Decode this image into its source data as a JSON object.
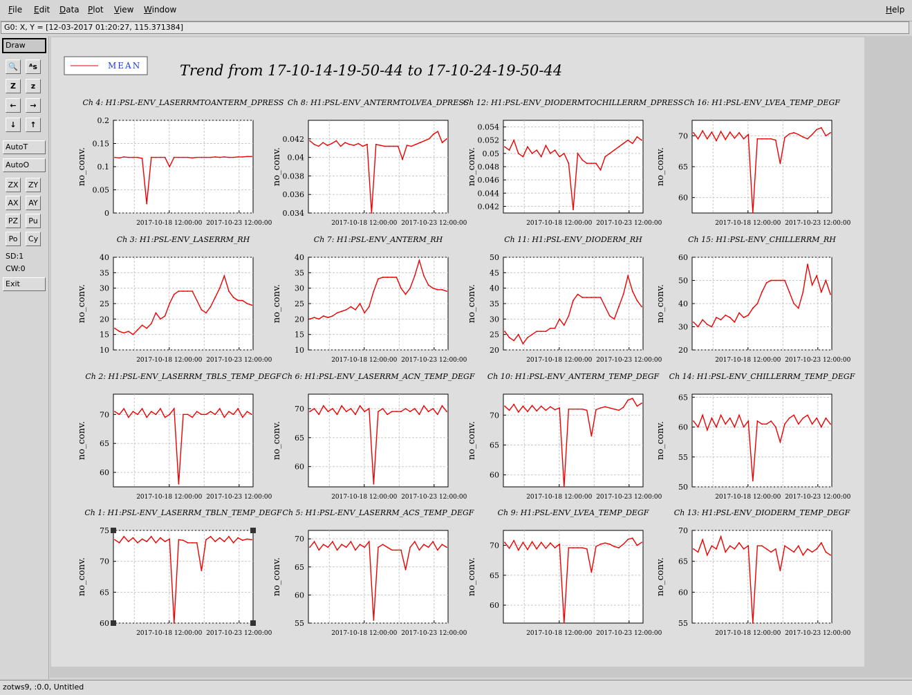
{
  "menubar": {
    "items": [
      {
        "u": "F",
        "rest": "ile"
      },
      {
        "u": "E",
        "rest": "dit"
      },
      {
        "u": "D",
        "rest": "ata"
      },
      {
        "u": "P",
        "rest": "lot"
      },
      {
        "u": "V",
        "rest": "iew"
      },
      {
        "u": "W",
        "rest": "indow"
      }
    ],
    "help": {
      "u": "H",
      "rest": "elp"
    }
  },
  "coord_readout": "G0: X, Y = [12-03-2017 01:20:27, 115.371384]",
  "toolbar": {
    "draw": "Draw",
    "autot": "AutoT",
    "autoo": "AutoO",
    "icons": [
      {
        "name": "zoom-icon",
        "glyph": "🔍"
      },
      {
        "name": "text-size-icon",
        "glyph": "ᴬs"
      },
      {
        "name": "zoom-z-bold-icon",
        "glyph": "Z"
      },
      {
        "name": "zoom-z-icon",
        "glyph": "z"
      },
      {
        "name": "arrow-left-icon",
        "glyph": "←"
      },
      {
        "name": "arrow-right-icon",
        "glyph": "→"
      },
      {
        "name": "arrow-down-icon",
        "glyph": "↓"
      },
      {
        "name": "arrow-up-icon",
        "glyph": "↑"
      }
    ],
    "pairs": [
      [
        "ZX",
        "ZY"
      ],
      [
        "AX",
        "AY"
      ],
      [
        "PZ",
        "Pu"
      ],
      [
        "Po",
        "Cy"
      ]
    ],
    "sd": "SD:1",
    "cw": "CW:0",
    "exit": "Exit"
  },
  "legend": {
    "label": "MEAN",
    "color": "#e00000"
  },
  "title": "Trend from 17-10-14-19-50-44 to 17-10-24-19-50-44",
  "status": "zotws9, :0.0, Untitled",
  "colors": {
    "trace": "#ee0000",
    "grid": "#c8c8c8"
  },
  "chart_data": [
    {
      "type": "line",
      "title": "Ch 4: H1:PSL-ENV_LASERRMTOANTERM_DPRESS",
      "ylabel": "no_conv.",
      "yticks": [
        "0",
        "0.05",
        "0.1",
        "0.15",
        "0.2"
      ],
      "ylim": [
        0,
        0.2
      ],
      "xticks": [
        "2017-10-18 12:00:00",
        "2017-10-23 12:00:00"
      ],
      "series": [
        {
          "values": [
            0.12,
            0.119,
            0.121,
            0.12,
            0.12,
            0.12,
            0.118,
            0.02,
            0.12,
            0.12,
            0.12,
            0.12,
            0.1,
            0.12,
            0.12,
            0.12,
            0.12,
            0.119,
            0.12,
            0.12,
            0.12,
            0.12,
            0.121,
            0.12,
            0.121,
            0.12,
            0.12,
            0.121,
            0.121,
            0.122,
            0.122
          ]
        }
      ]
    },
    {
      "type": "line",
      "title": "Ch 8: H1:PSL-ENV_ANTERMTOLVEA_DPRESS",
      "ylabel": "no_conv.",
      "yticks": [
        "0.034",
        "0.036",
        "0.038",
        "0.04",
        "0.042"
      ],
      "ylim": [
        0.034,
        0.044
      ],
      "xticks": [
        "2017-10-18 12:00:00",
        "2017-10-23 12:00:00"
      ],
      "series": [
        {
          "values": [
            0.0418,
            0.0414,
            0.0412,
            0.0416,
            0.0413,
            0.0415,
            0.0418,
            0.0412,
            0.0416,
            0.0414,
            0.0413,
            0.0415,
            0.0412,
            0.0414,
            0.034,
            0.0414,
            0.0413,
            0.0412,
            0.0412,
            0.0412,
            0.0412,
            0.0398,
            0.0413,
            0.0412,
            0.0414,
            0.0416,
            0.0418,
            0.042,
            0.0425,
            0.0428,
            0.0416,
            0.042
          ]
        }
      ]
    },
    {
      "type": "line",
      "title": "Ch 12: H1:PSL-ENV_DIODERMTOCHILLERRM_DPRESS",
      "ylabel": "no_conv.",
      "yticks": [
        "0.042",
        "0.044",
        "0.046",
        "0.048",
        "0.05",
        "0.052",
        "0.054"
      ],
      "ylim": [
        0.041,
        0.055
      ],
      "xticks": [
        "2017-10-18 12:00:00",
        "2017-10-23 12:00:00"
      ],
      "series": [
        {
          "values": [
            0.051,
            0.0505,
            0.052,
            0.05,
            0.0495,
            0.051,
            0.05,
            0.0505,
            0.0495,
            0.0512,
            0.05,
            0.0505,
            0.0495,
            0.05,
            0.0485,
            0.0415,
            0.05,
            0.049,
            0.0485,
            0.0485,
            0.0485,
            0.0475,
            0.0495,
            0.05,
            0.0505,
            0.051,
            0.0515,
            0.052,
            0.0515,
            0.0525,
            0.052
          ]
        }
      ]
    },
    {
      "type": "line",
      "title": "Ch 16: H1:PSL-ENV_LVEA_TEMP_DEGF",
      "ylabel": "no_conv.",
      "yticks": [
        "60",
        "65",
        "70"
      ],
      "ylim": [
        57.5,
        72.5
      ],
      "xticks": [
        "2017-10-18 12:00:00",
        "2017-10-23 12:00:00"
      ],
      "series": [
        {
          "values": [
            70.5,
            69.5,
            70.8,
            69.5,
            70.6,
            69.2,
            70.7,
            69.4,
            70.6,
            69.6,
            70.5,
            69.5,
            70.2,
            57.5,
            69.5,
            69.5,
            69.5,
            69.5,
            69.3,
            65.5,
            69.7,
            70.3,
            70.5,
            70.2,
            69.8,
            69.5,
            70.2,
            71,
            71.3,
            70,
            70.5
          ]
        }
      ]
    },
    {
      "type": "line",
      "title": "Ch 3: H1:PSL-ENV_LASERRM_RH",
      "ylabel": "no_conv.",
      "yticks": [
        "10",
        "15",
        "20",
        "25",
        "30",
        "35",
        "40"
      ],
      "ylim": [
        10,
        40
      ],
      "xticks": [
        "2017-10-18 12:00:00",
        "2017-10-23 12:00:00"
      ],
      "series": [
        {
          "values": [
            17,
            16,
            15.5,
            16,
            15,
            16.5,
            18,
            17,
            18.5,
            22,
            20,
            21,
            25,
            28,
            29,
            29,
            29,
            29,
            26,
            23,
            22,
            24,
            27,
            30,
            34,
            29,
            27,
            26,
            26,
            25,
            24.5
          ]
        }
      ]
    },
    {
      "type": "line",
      "title": "Ch 7: H1:PSL-ENV_ANTERM_RH",
      "ylabel": "no_conv.",
      "yticks": [
        "10",
        "15",
        "20",
        "25",
        "30",
        "35",
        "40"
      ],
      "ylim": [
        10,
        40
      ],
      "xticks": [
        "2017-10-18 12:00:00",
        "2017-10-23 12:00:00"
      ],
      "series": [
        {
          "values": [
            20,
            20.5,
            20,
            21,
            20.5,
            21,
            22,
            22.5,
            23,
            24,
            23,
            25,
            22,
            24,
            29,
            33,
            33.5,
            33.5,
            33.5,
            33.5,
            30,
            28,
            30,
            34,
            39,
            34,
            31,
            30,
            29.5,
            29.5,
            29
          ]
        }
      ]
    },
    {
      "type": "line",
      "title": "Ch 11: H1:PSL-ENV_DIODERM_RH",
      "ylabel": "no_conv.",
      "yticks": [
        "20",
        "25",
        "30",
        "35",
        "40",
        "45",
        "50"
      ],
      "ylim": [
        20,
        50
      ],
      "xticks": [
        "2017-10-18 12:00:00",
        "2017-10-23 12:00:00"
      ],
      "series": [
        {
          "values": [
            26,
            24,
            23,
            25,
            22,
            24,
            25,
            26,
            26,
            26,
            27,
            27,
            30,
            28,
            31,
            36,
            38,
            37,
            37,
            37,
            37,
            37,
            34,
            31,
            30,
            34,
            38,
            44,
            39,
            36,
            34
          ]
        }
      ]
    },
    {
      "type": "line",
      "title": "Ch 15: H1:PSL-ENV_CHILLERRM_RH",
      "ylabel": "no_conv.",
      "yticks": [
        "20",
        "30",
        "40",
        "50",
        "60"
      ],
      "ylim": [
        20,
        60
      ],
      "xticks": [
        "2017-10-18 12:00:00",
        "2017-10-23 12:00:00"
      ],
      "series": [
        {
          "values": [
            32,
            30,
            33,
            31,
            30,
            34,
            33,
            35,
            34,
            32,
            36,
            34,
            35,
            38,
            40,
            45,
            49,
            50,
            50,
            50,
            50,
            45,
            40,
            38,
            45,
            57,
            48,
            52,
            45,
            50,
            44
          ]
        }
      ]
    },
    {
      "type": "line",
      "title": "Ch 2: H1:PSL-ENV_LASERRM_TBLS_TEMP_DEGF",
      "ylabel": "no_conv.",
      "yticks": [
        "60",
        "65",
        "70"
      ],
      "ylim": [
        57.5,
        73.5
      ],
      "xticks": [
        "2017-10-18 12:00:00",
        "2017-10-23 12:00:00"
      ],
      "series": [
        {
          "values": [
            70.5,
            70,
            71,
            69.5,
            70.5,
            70,
            71,
            69.5,
            70.5,
            70,
            71,
            69.5,
            70,
            71,
            58,
            70,
            70,
            69.5,
            70.5,
            70,
            70,
            70.5,
            70,
            71,
            69.5,
            70.5,
            70,
            71,
            69.5,
            70.5,
            70
          ]
        }
      ]
    },
    {
      "type": "line",
      "title": "Ch 6: H1:PSL-ENV_LASERRM_ACN_TEMP_DEGF",
      "ylabel": "no_conv.",
      "yticks": [
        "60",
        "65",
        "70"
      ],
      "ylim": [
        56.5,
        72.5
      ],
      "xticks": [
        "2017-10-18 12:00:00",
        "2017-10-23 12:00:00"
      ],
      "series": [
        {
          "values": [
            69.5,
            70,
            69,
            70.5,
            69.5,
            70,
            69,
            70.5,
            69.5,
            70,
            69,
            70.5,
            69.5,
            70,
            57,
            69.5,
            70,
            69,
            69.5,
            69.5,
            69.5,
            70,
            69.5,
            70,
            69,
            70.5,
            69.5,
            70,
            69,
            70.5,
            69.5
          ]
        }
      ]
    },
    {
      "type": "line",
      "title": "Ch 10: H1:PSL-ENV_ANTERM_TEMP_DEGF",
      "ylabel": "no_conv.",
      "yticks": [
        "60",
        "65",
        "70"
      ],
      "ylim": [
        58,
        73.5
      ],
      "xticks": [
        "2017-10-18 12:00:00",
        "2017-10-23 12:00:00"
      ],
      "series": [
        {
          "values": [
            71.5,
            70.8,
            71.8,
            70.5,
            71.5,
            70.6,
            71.6,
            70.7,
            71.5,
            70.8,
            71.4,
            70.9,
            71.2,
            58,
            71,
            71,
            71,
            71,
            70.8,
            66.5,
            70.9,
            71.2,
            71.4,
            71.2,
            71,
            70.8,
            71.3,
            72.5,
            72.8,
            71.5,
            72
          ]
        }
      ]
    },
    {
      "type": "line",
      "title": "Ch 14: H1:PSL-ENV_CHILLERRM_TEMP_DEGF",
      "ylabel": "no_conv.",
      "yticks": [
        "50",
        "55",
        "60",
        "65"
      ],
      "ylim": [
        50,
        65.5
      ],
      "xticks": [
        "2017-10-18 12:00:00",
        "2017-10-23 12:00:00"
      ],
      "series": [
        {
          "values": [
            61,
            60,
            62,
            59.5,
            61.5,
            60,
            62,
            60.5,
            61.5,
            60,
            62,
            60,
            61,
            51,
            61,
            60.5,
            60.5,
            61,
            60,
            57.5,
            60.5,
            61.5,
            62,
            60.5,
            61.5,
            62,
            60.5,
            61.5,
            60,
            61.5,
            60.5
          ]
        }
      ]
    },
    {
      "type": "line",
      "title": "Ch 1: H1:PSL-ENV_LASERRM_TBLN_TEMP_DEGF",
      "ylabel": "no_conv.",
      "yticks": [
        "60",
        "65",
        "70",
        "75"
      ],
      "ylim": [
        60,
        75
      ],
      "xticks": [
        "2017-10-18 12:00:00",
        "2017-10-23 12:00:00"
      ],
      "series": [
        {
          "values": [
            73.5,
            73,
            74,
            73.2,
            73.8,
            73,
            73.6,
            73.2,
            74,
            73,
            73.8,
            73.2,
            73.6,
            60,
            73.5,
            73.4,
            73,
            73,
            73,
            68.5,
            73.5,
            74,
            73.2,
            73.8,
            73.2,
            74,
            73,
            73.8,
            73.4,
            73.6,
            73.5
          ]
        }
      ]
    },
    {
      "type": "line",
      "title": "Ch 5: H1:PSL-ENV_LASERRM_ACS_TEMP_DEGF",
      "ylabel": "no_conv.",
      "yticks": [
        "55",
        "60",
        "65",
        "70"
      ],
      "ylim": [
        55,
        71.5
      ],
      "xticks": [
        "2017-10-18 12:00:00",
        "2017-10-23 12:00:00"
      ],
      "series": [
        {
          "values": [
            68.5,
            69.5,
            68,
            69,
            68.5,
            69.5,
            68,
            69,
            68.5,
            69.5,
            68,
            69,
            68.5,
            69.5,
            55.5,
            68.5,
            69,
            68.5,
            68,
            68,
            68,
            64.5,
            68.5,
            69.5,
            68,
            69,
            68.5,
            69.5,
            68,
            69,
            68.5
          ]
        }
      ]
    },
    {
      "type": "line",
      "title": "Ch 9: H1:PSL-ENV_LVEA_TEMP_DEGF",
      "ylabel": "no_conv.",
      "yticks": [
        "60",
        "65",
        "70"
      ],
      "ylim": [
        57,
        72.5
      ],
      "xticks": [
        "2017-10-18 12:00:00",
        "2017-10-23 12:00:00"
      ],
      "series": [
        {
          "values": [
            70.5,
            69.5,
            70.8,
            69.2,
            70.5,
            69.3,
            70.6,
            69.4,
            70.5,
            69.5,
            70.4,
            69.6,
            70.2,
            57,
            69.6,
            69.6,
            69.6,
            69.6,
            69.4,
            65.5,
            69.8,
            70.2,
            70.4,
            70.2,
            69.8,
            69.6,
            70.2,
            71,
            71.2,
            70,
            70.5
          ]
        }
      ]
    },
    {
      "type": "line",
      "title": "Ch 13: H1:PSL-ENV_DIODERM_TEMP_DEGF",
      "ylabel": "no_conv.",
      "yticks": [
        "55",
        "60",
        "65",
        "70"
      ],
      "ylim": [
        55,
        70
      ],
      "xticks": [
        "2017-10-18 12:00:00",
        "2017-10-23 12:00:00"
      ],
      "series": [
        {
          "values": [
            67,
            66.5,
            68.5,
            66,
            67.5,
            67,
            69,
            66.5,
            67.5,
            67,
            68,
            67,
            67.5,
            55,
            67.5,
            67.5,
            67,
            66.5,
            67,
            63.5,
            67.5,
            67,
            66.5,
            67.5,
            66,
            67,
            66.5,
            67,
            68,
            66.5,
            66
          ]
        }
      ]
    }
  ]
}
